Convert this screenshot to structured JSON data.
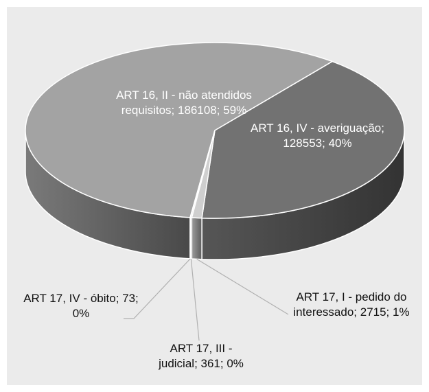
{
  "chart_data": {
    "type": "pie3d",
    "value_labels": [
      "ART 16, II - não atendidos requisitos; 186108; 59%",
      "ART 16, IV - averiguação; 128553; 40%",
      "ART 17, I - pedido do interessado; 2715; 1%",
      "ART 17, III - judicial; 361; 0%",
      "ART 17, IV - óbito; 73; 0%"
    ],
    "values": [
      186108,
      128553,
      2715,
      361,
      73
    ],
    "colors": [
      "#a3a3a3",
      "#727272",
      "#cfcfcf",
      "#d8d8d8",
      "#e0e0e0"
    ]
  }
}
